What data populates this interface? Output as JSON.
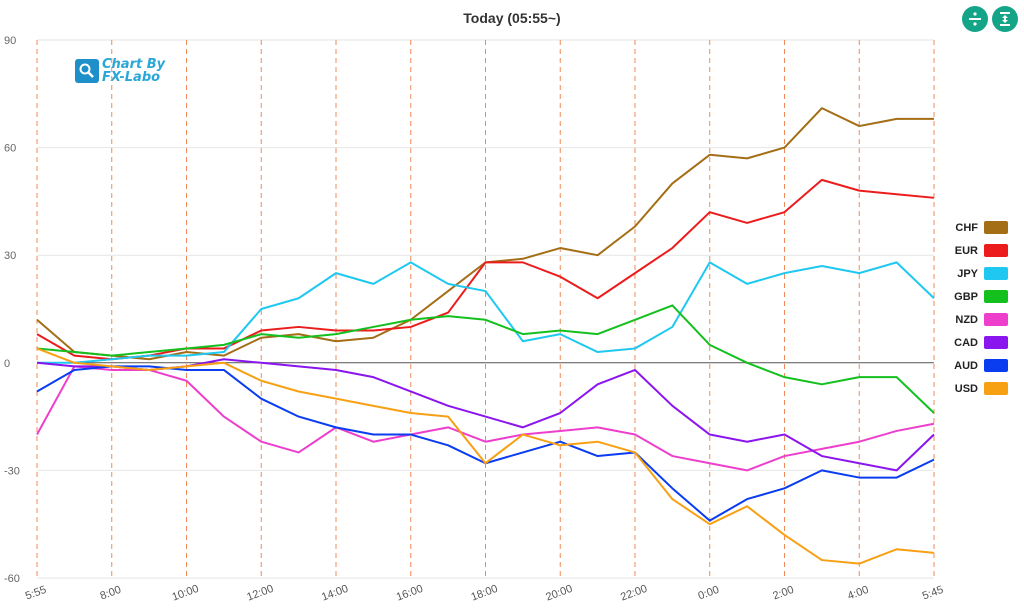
{
  "header": {
    "title": "Today  (05:55~)"
  },
  "toolbar": {
    "buttons": [
      {
        "icon": "divide-icon"
      },
      {
        "icon": "fit-range-icon"
      }
    ]
  },
  "watermark": {
    "line1": "Chart By",
    "line2": "FX-Labo"
  },
  "chart_data": {
    "type": "line",
    "ylim": [
      -60,
      90
    ],
    "y_ticks": [
      90,
      60,
      30,
      0,
      -30,
      -60
    ],
    "x_tick_labels": [
      "5:55",
      "8:00",
      "10:00",
      "12:00",
      "14:00",
      "16:00",
      "18:00",
      "20:00",
      "22:00",
      "0:00",
      "2:00",
      "4:00",
      "5:45"
    ],
    "x": [
      0,
      1,
      2,
      3,
      4,
      5,
      6,
      7,
      8,
      9,
      10,
      11,
      12,
      13,
      14,
      15,
      16,
      17,
      18,
      19,
      20,
      21,
      22,
      23,
      24
    ],
    "series": [
      {
        "name": "CHF",
        "color": "#a36e16",
        "values": [
          12,
          3,
          2,
          1,
          3,
          2,
          7,
          8,
          6,
          7,
          12,
          20,
          28,
          29,
          32,
          30,
          38,
          50,
          58,
          57,
          60,
          71,
          66,
          68,
          68
        ]
      },
      {
        "name": "EUR",
        "color": "#ec1c1c",
        "values": [
          8,
          2,
          1,
          2,
          4,
          4,
          9,
          10,
          9,
          9,
          10,
          14,
          28,
          28,
          24,
          18,
          25,
          32,
          42,
          39,
          42,
          51,
          48,
          47,
          46
        ]
      },
      {
        "name": "JPY",
        "color": "#1fc8f0",
        "values": [
          0,
          0,
          1,
          2,
          2,
          3,
          15,
          18,
          25,
          22,
          28,
          22,
          20,
          6,
          8,
          3,
          4,
          10,
          28,
          22,
          25,
          27,
          25,
          28,
          18
        ]
      },
      {
        "name": "GBP",
        "color": "#14c01e",
        "values": [
          4,
          3,
          2,
          3,
          4,
          5,
          8,
          7,
          8,
          10,
          12,
          13,
          12,
          8,
          9,
          8,
          12,
          16,
          5,
          0,
          -4,
          -6,
          -4,
          -4,
          -14
        ]
      },
      {
        "name": "NZD",
        "color": "#ee3fcc",
        "values": [
          -20,
          -1,
          -2,
          -2,
          -5,
          -15,
          -22,
          -25,
          -18,
          -22,
          -20,
          -18,
          -22,
          -20,
          -19,
          -18,
          -20,
          -26,
          -28,
          -30,
          -26,
          -24,
          -22,
          -19,
          -17
        ]
      },
      {
        "name": "CAD",
        "color": "#8a15ee",
        "values": [
          0,
          -1,
          -1,
          -2,
          -1,
          1,
          0,
          -1,
          -2,
          -4,
          -8,
          -12,
          -15,
          -18,
          -14,
          -6,
          -2,
          -12,
          -20,
          -22,
          -20,
          -26,
          -28,
          -30,
          -20
        ]
      },
      {
        "name": "AUD",
        "color": "#0a3cf0",
        "values": [
          -8,
          -2,
          -1,
          -1,
          -2,
          -2,
          -10,
          -15,
          -18,
          -20,
          -20,
          -23,
          -28,
          -25,
          -22,
          -26,
          -25,
          -35,
          -44,
          -38,
          -35,
          -30,
          -32,
          -32,
          -27
        ]
      },
      {
        "name": "USD",
        "color": "#f7a014",
        "values": [
          4,
          0,
          -1,
          -2,
          -1,
          0,
          -5,
          -8,
          -10,
          -12,
          -14,
          -15,
          -28,
          -20,
          -23,
          -22,
          -25,
          -38,
          -45,
          -40,
          -48,
          -55,
          -56,
          -52,
          -53
        ]
      }
    ]
  }
}
